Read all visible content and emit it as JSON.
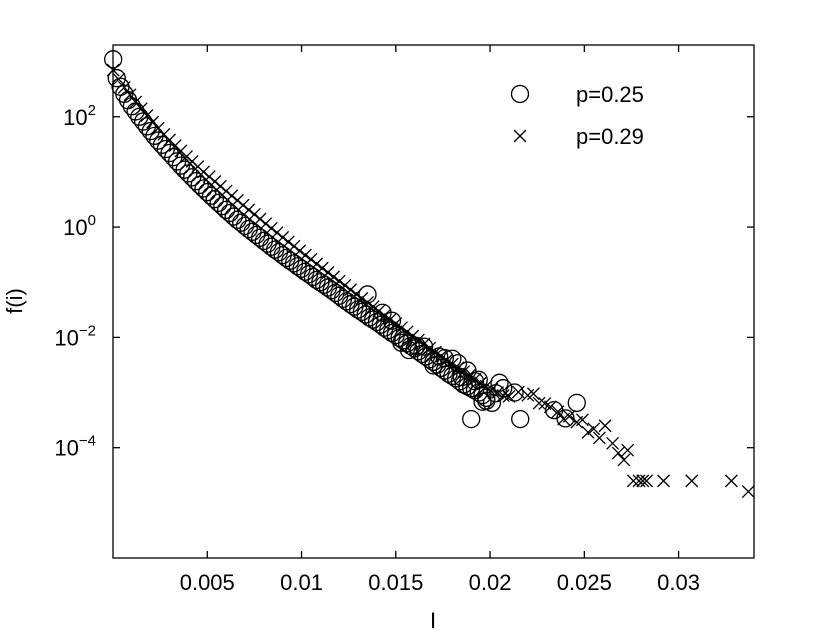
{
  "chart_data": {
    "type": "scatter",
    "title": "",
    "xlabel": "I",
    "ylabel": "f(i)",
    "xlim": [
      0.0,
      0.034
    ],
    "ylim": [
      1e-06,
      2000
    ],
    "yscale": "log",
    "grid": false,
    "legend_position": "top-right",
    "x_ticks": [
      {
        "value": 0.005,
        "label": "0.005"
      },
      {
        "value": 0.01,
        "label": "0.01"
      },
      {
        "value": 0.015,
        "label": "0.015"
      },
      {
        "value": 0.02,
        "label": "0.02"
      },
      {
        "value": 0.025,
        "label": "0.025"
      },
      {
        "value": 0.03,
        "label": "0.03"
      }
    ],
    "y_ticks": [
      {
        "value": 100,
        "base": "10",
        "exp": "2"
      },
      {
        "value": 1,
        "base": "10",
        "exp": "0"
      },
      {
        "value": 0.01,
        "base": "10",
        "exp": "−2"
      },
      {
        "value": 0.0001,
        "base": "10",
        "exp": "−4"
      }
    ],
    "series": [
      {
        "name": "p=0.25",
        "marker": "circle",
        "color": "#000000",
        "points": [
          [
            1e-05,
            1100
          ],
          [
            0.0002,
            500
          ],
          [
            0.0004,
            350
          ],
          [
            0.0006,
            260
          ],
          [
            0.0008,
            200
          ],
          [
            0.001,
            155
          ],
          [
            0.0012,
            125
          ],
          [
            0.0014,
            100
          ],
          [
            0.0016,
            82
          ],
          [
            0.0018,
            67
          ],
          [
            0.002,
            55
          ],
          [
            0.0022,
            45
          ],
          [
            0.0024,
            37
          ],
          [
            0.0026,
            31
          ],
          [
            0.0028,
            26
          ],
          [
            0.003,
            22
          ],
          [
            0.0032,
            18.5
          ],
          [
            0.0034,
            15.5
          ],
          [
            0.0036,
            13
          ],
          [
            0.0038,
            11
          ],
          [
            0.004,
            9.4
          ],
          [
            0.0042,
            8
          ],
          [
            0.0044,
            6.8
          ],
          [
            0.0046,
            5.8
          ],
          [
            0.0048,
            5
          ],
          [
            0.005,
            4.3
          ],
          [
            0.0052,
            3.7
          ],
          [
            0.0054,
            3.2
          ],
          [
            0.0056,
            2.75
          ],
          [
            0.0058,
            2.4
          ],
          [
            0.006,
            2.05
          ],
          [
            0.0062,
            1.8
          ],
          [
            0.0064,
            1.55
          ],
          [
            0.0066,
            1.35
          ],
          [
            0.0068,
            1.2
          ],
          [
            0.007,
            1.05
          ],
          [
            0.0072,
            0.92
          ],
          [
            0.0074,
            0.82
          ],
          [
            0.0076,
            0.72
          ],
          [
            0.0078,
            0.64
          ],
          [
            0.008,
            0.56
          ],
          [
            0.0082,
            0.5
          ],
          [
            0.0084,
            0.44
          ],
          [
            0.0086,
            0.39
          ],
          [
            0.0088,
            0.35
          ],
          [
            0.009,
            0.31
          ],
          [
            0.0092,
            0.275
          ],
          [
            0.0094,
            0.245
          ],
          [
            0.0096,
            0.22
          ],
          [
            0.0098,
            0.195
          ],
          [
            0.01,
            0.175
          ],
          [
            0.0102,
            0.155
          ],
          [
            0.0104,
            0.14
          ],
          [
            0.0106,
            0.125
          ],
          [
            0.0108,
            0.11
          ],
          [
            0.011,
            0.1
          ],
          [
            0.0112,
            0.09
          ],
          [
            0.0114,
            0.08
          ],
          [
            0.0116,
            0.072
          ],
          [
            0.0118,
            0.064
          ],
          [
            0.012,
            0.057
          ],
          [
            0.0122,
            0.05
          ],
          [
            0.0124,
            0.045
          ],
          [
            0.0126,
            0.04
          ],
          [
            0.0128,
            0.036
          ],
          [
            0.013,
            0.032
          ],
          [
            0.0132,
            0.029
          ],
          [
            0.0134,
            0.026
          ],
          [
            0.0136,
            0.023
          ],
          [
            0.0138,
            0.021
          ],
          [
            0.014,
            0.019
          ],
          [
            0.0142,
            0.017
          ],
          [
            0.0144,
            0.015
          ],
          [
            0.0146,
            0.0135
          ],
          [
            0.0148,
            0.012
          ],
          [
            0.015,
            0.011
          ],
          [
            0.0152,
            0.0098
          ],
          [
            0.0154,
            0.0088
          ],
          [
            0.0156,
            0.0078
          ],
          [
            0.0158,
            0.007
          ],
          [
            0.016,
            0.0063
          ],
          [
            0.0162,
            0.0056
          ],
          [
            0.0164,
            0.005
          ],
          [
            0.0166,
            0.0045
          ],
          [
            0.0168,
            0.004
          ],
          [
            0.017,
            0.0036
          ],
          [
            0.0172,
            0.0032
          ],
          [
            0.0174,
            0.0028
          ],
          [
            0.0176,
            0.0025
          ],
          [
            0.0178,
            0.0022
          ],
          [
            0.018,
            0.002
          ],
          [
            0.0182,
            0.0018
          ],
          [
            0.0184,
            0.0016
          ],
          [
            0.0186,
            0.0014
          ],
          [
            0.0188,
            0.0013
          ],
          [
            0.019,
            0.0012
          ],
          [
            0.0192,
            0.0011
          ],
          [
            0.0194,
            0.001
          ],
          [
            0.0196,
            0.0009
          ],
          [
            0.0198,
            0.0008
          ],
          [
            0.0135,
            0.06
          ],
          [
            0.0143,
            0.028
          ],
          [
            0.0148,
            0.02
          ],
          [
            0.0153,
            0.008
          ],
          [
            0.0157,
            0.0059
          ],
          [
            0.0161,
            0.007
          ],
          [
            0.0165,
            0.0068
          ],
          [
            0.017,
            0.0031
          ],
          [
            0.0173,
            0.0045
          ],
          [
            0.0176,
            0.0042
          ],
          [
            0.018,
            0.0041
          ],
          [
            0.0183,
            0.0034
          ],
          [
            0.0185,
            0.0019
          ],
          [
            0.0188,
            0.0025
          ],
          [
            0.019,
            0.00033
          ],
          [
            0.0192,
            0.0016
          ],
          [
            0.0194,
            0.0017
          ],
          [
            0.0196,
            0.00068
          ],
          [
            0.0198,
            0.00071
          ],
          [
            0.0201,
            0.00065
          ],
          [
            0.0203,
            0.00097
          ],
          [
            0.0205,
            0.0015
          ],
          [
            0.0207,
            0.0012
          ],
          [
            0.0213,
            0.001
          ],
          [
            0.0216,
            0.00033
          ],
          [
            0.0234,
            0.00048
          ],
          [
            0.024,
            0.00034
          ],
          [
            0.0246,
            0.00065
          ]
        ]
      },
      {
        "name": "p=0.29",
        "marker": "x",
        "color": "#000000",
        "points": [
          [
            1e-05,
            700
          ],
          [
            0.0003,
            480
          ],
          [
            0.0006,
            340
          ],
          [
            0.0009,
            250
          ],
          [
            0.0012,
            185
          ],
          [
            0.0015,
            140
          ],
          [
            0.0018,
            105
          ],
          [
            0.0021,
            80
          ],
          [
            0.0024,
            62
          ],
          [
            0.0027,
            48
          ],
          [
            0.003,
            38
          ],
          [
            0.0033,
            30
          ],
          [
            0.0036,
            24
          ],
          [
            0.0039,
            19
          ],
          [
            0.0042,
            15.5
          ],
          [
            0.0045,
            12.5
          ],
          [
            0.0048,
            10
          ],
          [
            0.0051,
            8.2
          ],
          [
            0.0054,
            6.7
          ],
          [
            0.0057,
            5.5
          ],
          [
            0.006,
            4.5
          ],
          [
            0.0063,
            3.7
          ],
          [
            0.0066,
            3.05
          ],
          [
            0.0069,
            2.5
          ],
          [
            0.0072,
            2.05
          ],
          [
            0.0075,
            1.7
          ],
          [
            0.0078,
            1.4
          ],
          [
            0.0081,
            1.15
          ],
          [
            0.0084,
            0.95
          ],
          [
            0.0087,
            0.79
          ],
          [
            0.009,
            0.65
          ],
          [
            0.0093,
            0.54
          ],
          [
            0.0096,
            0.45
          ],
          [
            0.0099,
            0.37
          ],
          [
            0.0102,
            0.31
          ],
          [
            0.0105,
            0.26
          ],
          [
            0.0108,
            0.215
          ],
          [
            0.0111,
            0.18
          ],
          [
            0.0114,
            0.15
          ],
          [
            0.0117,
            0.125
          ],
          [
            0.012,
            0.105
          ],
          [
            0.0123,
            0.088
          ],
          [
            0.0126,
            0.073
          ],
          [
            0.0129,
            0.061
          ],
          [
            0.0132,
            0.051
          ],
          [
            0.0135,
            0.043
          ],
          [
            0.0138,
            0.036
          ],
          [
            0.0141,
            0.03
          ],
          [
            0.0144,
            0.025
          ],
          [
            0.0147,
            0.021
          ],
          [
            0.015,
            0.0178
          ],
          [
            0.0153,
            0.015
          ],
          [
            0.0156,
            0.0126
          ],
          [
            0.0159,
            0.0106
          ],
          [
            0.0162,
            0.009
          ],
          [
            0.0165,
            0.0076
          ],
          [
            0.0168,
            0.0064
          ],
          [
            0.0171,
            0.0054
          ],
          [
            0.0174,
            0.0046
          ],
          [
            0.0177,
            0.0039
          ],
          [
            0.018,
            0.0033
          ],
          [
            0.0183,
            0.0028
          ],
          [
            0.0186,
            0.0024
          ],
          [
            0.0189,
            0.00205
          ],
          [
            0.0192,
            0.00175
          ],
          [
            0.0195,
            0.0015
          ],
          [
            0.0198,
            0.0013
          ],
          [
            0.0201,
            0.00115
          ],
          [
            0.0204,
            0.001
          ],
          [
            0.0207,
            0.00088
          ],
          [
            0.021,
            0.00085
          ],
          [
            0.0215,
            0.00102
          ],
          [
            0.022,
            0.00089
          ],
          [
            0.0223,
            0.00095
          ],
          [
            0.0226,
            0.00064
          ],
          [
            0.0229,
            0.00063
          ],
          [
            0.0232,
            0.00055
          ],
          [
            0.0236,
            0.00045
          ],
          [
            0.0239,
            0.00033
          ],
          [
            0.0242,
            0.00037
          ],
          [
            0.0246,
            0.00029
          ],
          [
            0.0249,
            0.00032
          ],
          [
            0.0252,
            0.00019
          ],
          [
            0.0255,
            0.00022
          ],
          [
            0.0258,
            0.00015
          ],
          [
            0.0261,
            0.00025
          ],
          [
            0.0265,
            0.00012
          ],
          [
            0.0268,
            8e-05
          ],
          [
            0.0271,
            6e-05
          ],
          [
            0.0273,
            9e-05
          ],
          [
            0.0276,
            2.5e-05
          ],
          [
            0.0279,
            2.5e-05
          ],
          [
            0.0281,
            2.5e-05
          ],
          [
            0.0283,
            2.5e-05
          ],
          [
            0.0292,
            2.5e-05
          ],
          [
            0.0307,
            2.5e-05
          ],
          [
            0.0328,
            2.5e-05
          ],
          [
            0.0337,
            1.6e-05
          ]
        ]
      }
    ]
  }
}
